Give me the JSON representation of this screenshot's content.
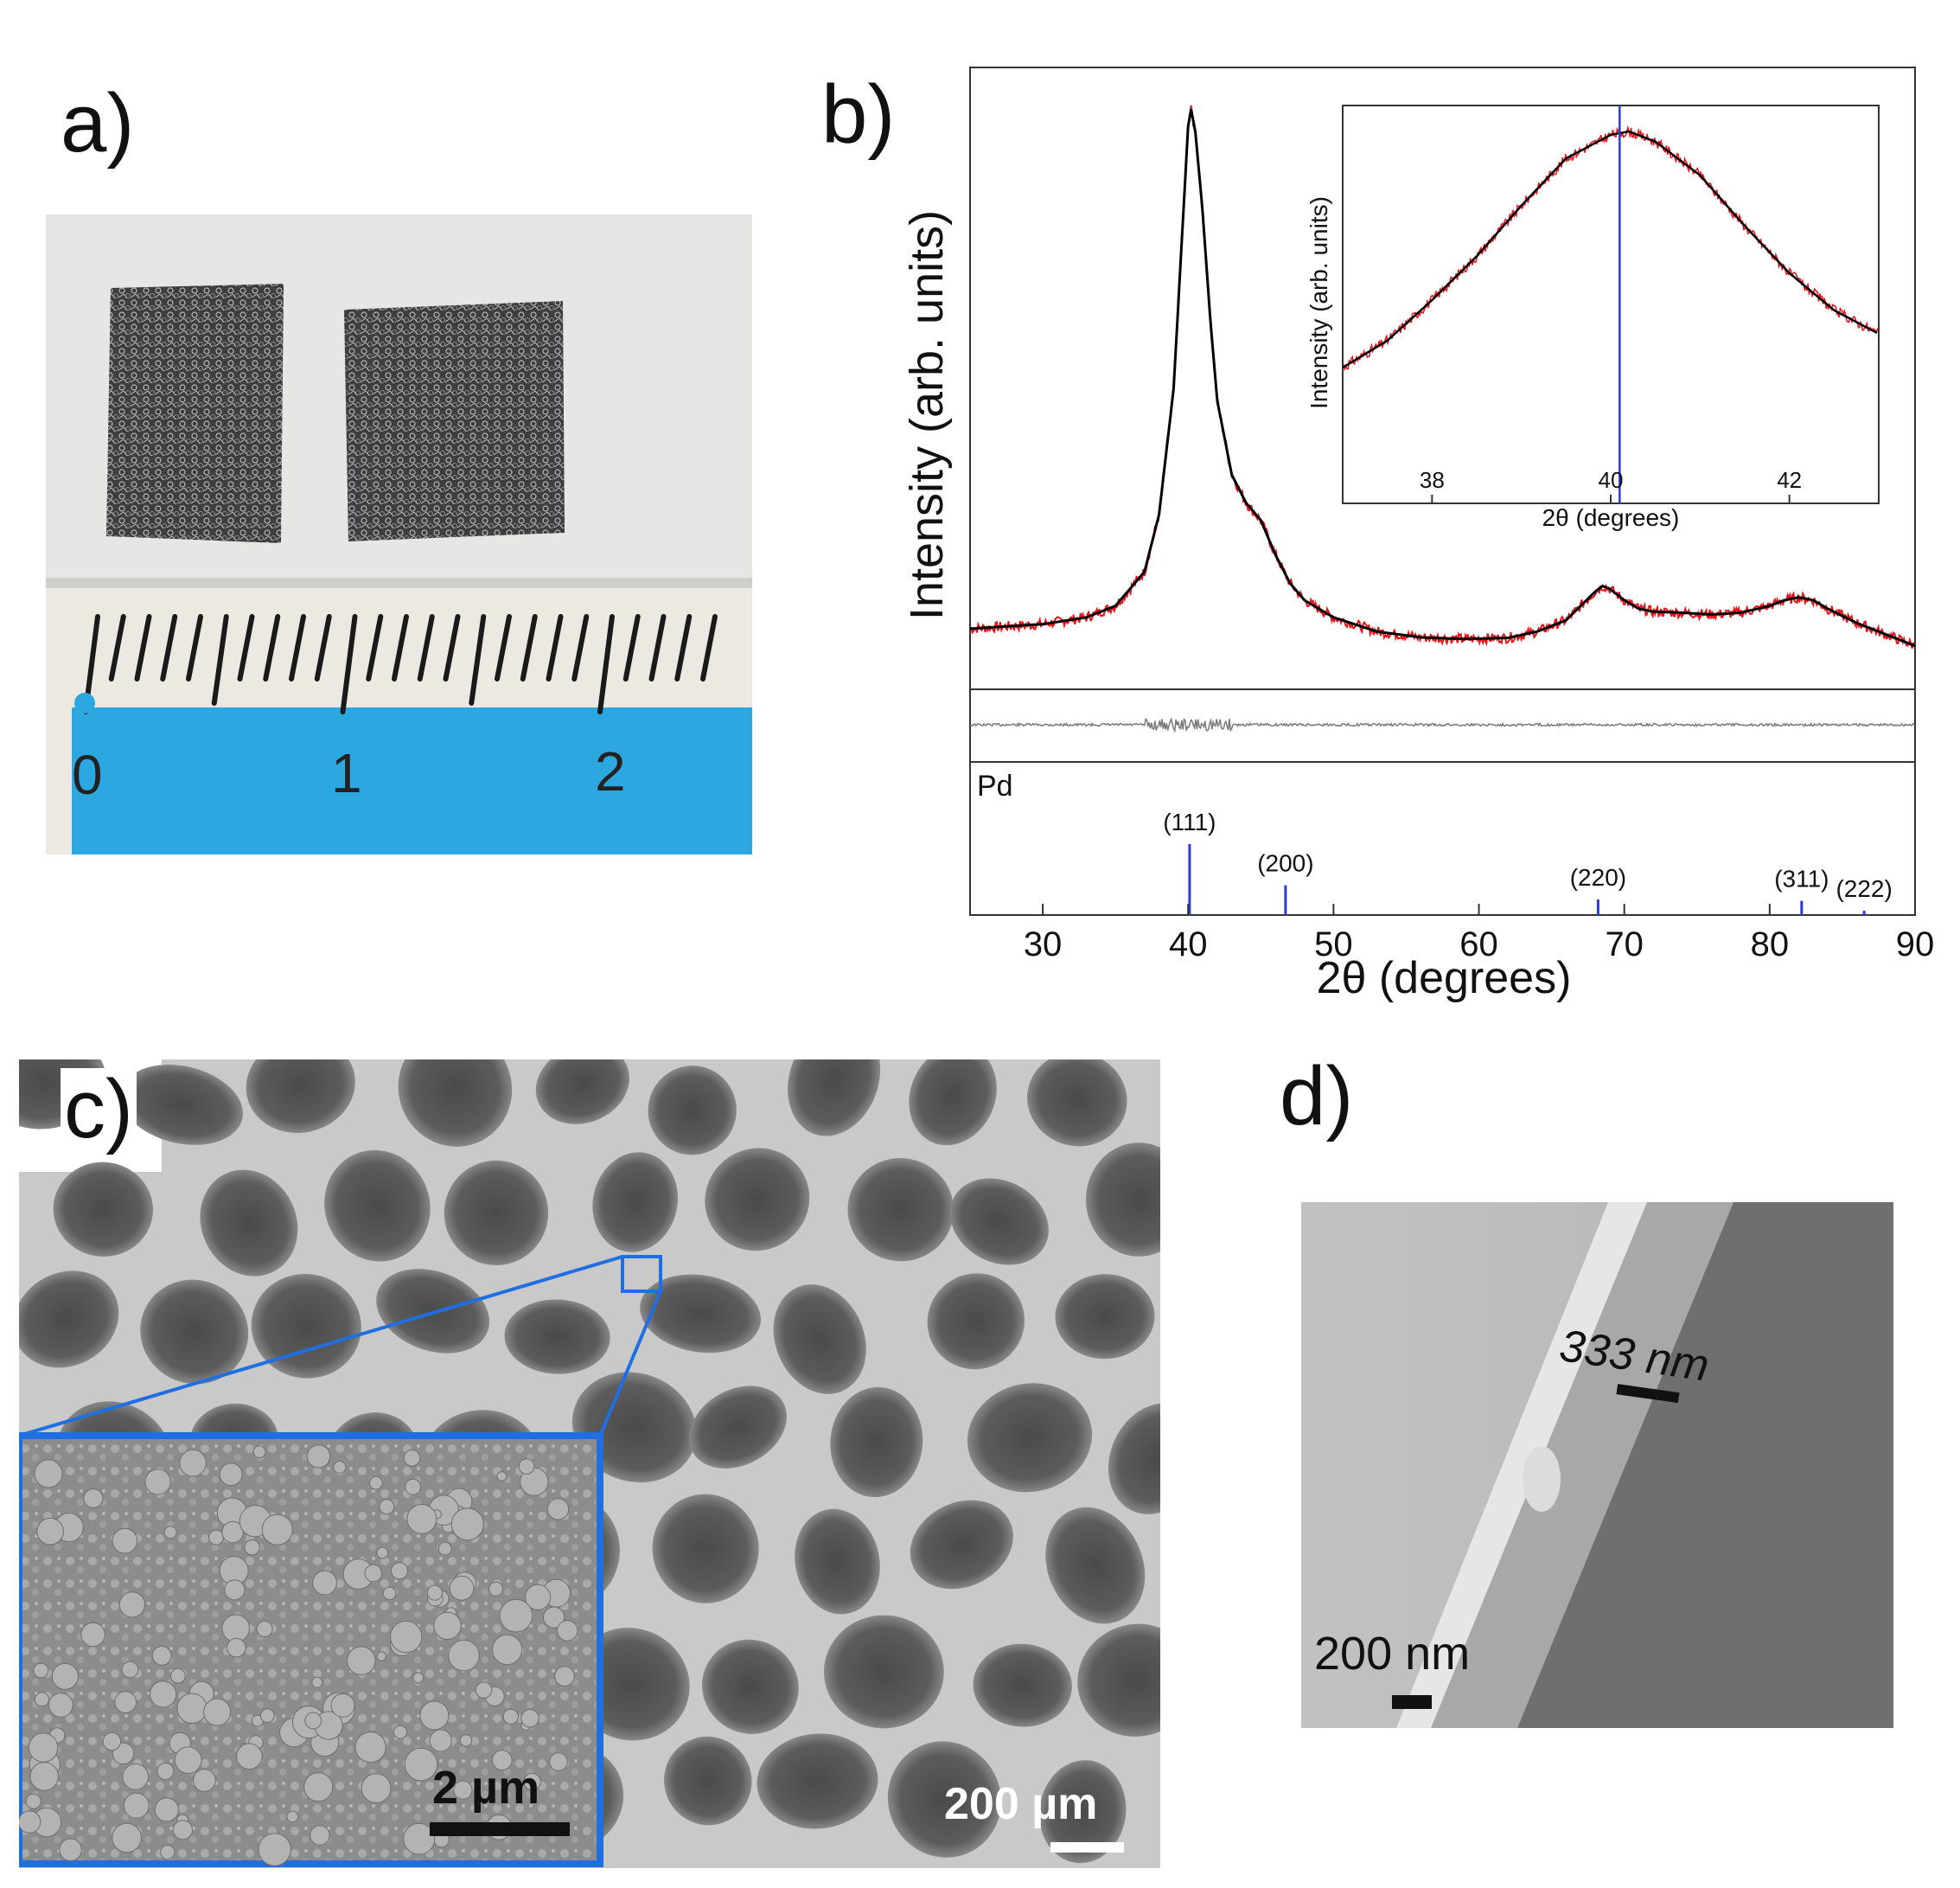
{
  "panels": {
    "a": {
      "label": "a)",
      "ruler_numbers": [
        "0",
        "1",
        "2"
      ]
    },
    "b": {
      "label": "b)",
      "xlabel": "2θ (degrees)",
      "ylabel": "Intensity (arb. units)",
      "reference_label": "Pd",
      "inset": {
        "xlabel": "2θ (degrees)",
        "ylabel": "Intensity (arb. units)"
      }
    },
    "c": {
      "label": "c)",
      "scale_main": "200 µm",
      "scale_inset": "2 µm"
    },
    "d": {
      "label": "d)",
      "scale": "200 nm",
      "thickness": "333 nm"
    }
  },
  "colors": {
    "observed": "#e8141a",
    "fit": "#000000",
    "residual": "#7a7a7a",
    "reference": "#2a3bd6",
    "zoom_box": "#1f6fe0",
    "ruler_blue": "#2da7e0"
  },
  "chart_data": [
    {
      "type": "line",
      "xlabel": "2θ (degrees)",
      "ylabel": "Intensity (arb. units)",
      "xlim": [
        25,
        90
      ],
      "xticks": [
        30,
        40,
        50,
        60,
        70,
        80,
        90
      ],
      "series": [
        {
          "x": [
            25,
            28,
            30,
            33,
            35,
            37,
            38,
            39,
            39.5,
            40,
            40.2,
            40.5,
            41,
            41.5,
            42,
            43,
            44,
            45,
            46,
            47,
            48,
            50,
            53,
            56,
            59,
            62,
            64,
            66,
            67,
            68,
            68.5,
            69,
            70,
            71,
            72,
            74,
            76,
            78,
            80,
            81,
            82,
            83,
            84,
            86,
            88,
            90
          ],
          "y": [
            0.05,
            0.055,
            0.058,
            0.07,
            0.09,
            0.15,
            0.25,
            0.47,
            0.7,
            0.93,
            0.96,
            0.92,
            0.78,
            0.6,
            0.45,
            0.32,
            0.27,
            0.24,
            0.18,
            0.13,
            0.1,
            0.07,
            0.045,
            0.035,
            0.032,
            0.034,
            0.045,
            0.065,
            0.09,
            0.115,
            0.125,
            0.12,
            0.1,
            0.085,
            0.08,
            0.078,
            0.075,
            0.078,
            0.09,
            0.1,
            0.105,
            0.1,
            0.085,
            0.06,
            0.04,
            0.02
          ]
        }
      ],
      "reference_peaks": [
        {
          "label": "(111)",
          "x": 40.1,
          "h": 1.0
        },
        {
          "label": "(200)",
          "x": 46.7,
          "h": 0.42
        },
        {
          "label": "(220)",
          "x": 68.2,
          "h": 0.22
        },
        {
          "label": "(311)",
          "x": 82.2,
          "h": 0.2
        },
        {
          "label": "(222)",
          "x": 86.5,
          "h": 0.06
        }
      ]
    },
    {
      "type": "line",
      "xlabel": "2θ (degrees)",
      "ylabel": "Intensity (arb. units)",
      "xlim": [
        37,
        43
      ],
      "xticks": [
        38,
        40,
        42
      ],
      "series": [
        {
          "x": [
            37,
            37.5,
            38,
            38.5,
            39,
            39.5,
            40,
            40.2,
            40.5,
            41,
            41.5,
            42,
            42.5,
            43
          ],
          "y": [
            0.3,
            0.38,
            0.5,
            0.63,
            0.78,
            0.92,
            0.99,
            1.0,
            0.97,
            0.87,
            0.72,
            0.58,
            0.47,
            0.4
          ]
        }
      ],
      "reference_line_x": 40.1
    }
  ]
}
